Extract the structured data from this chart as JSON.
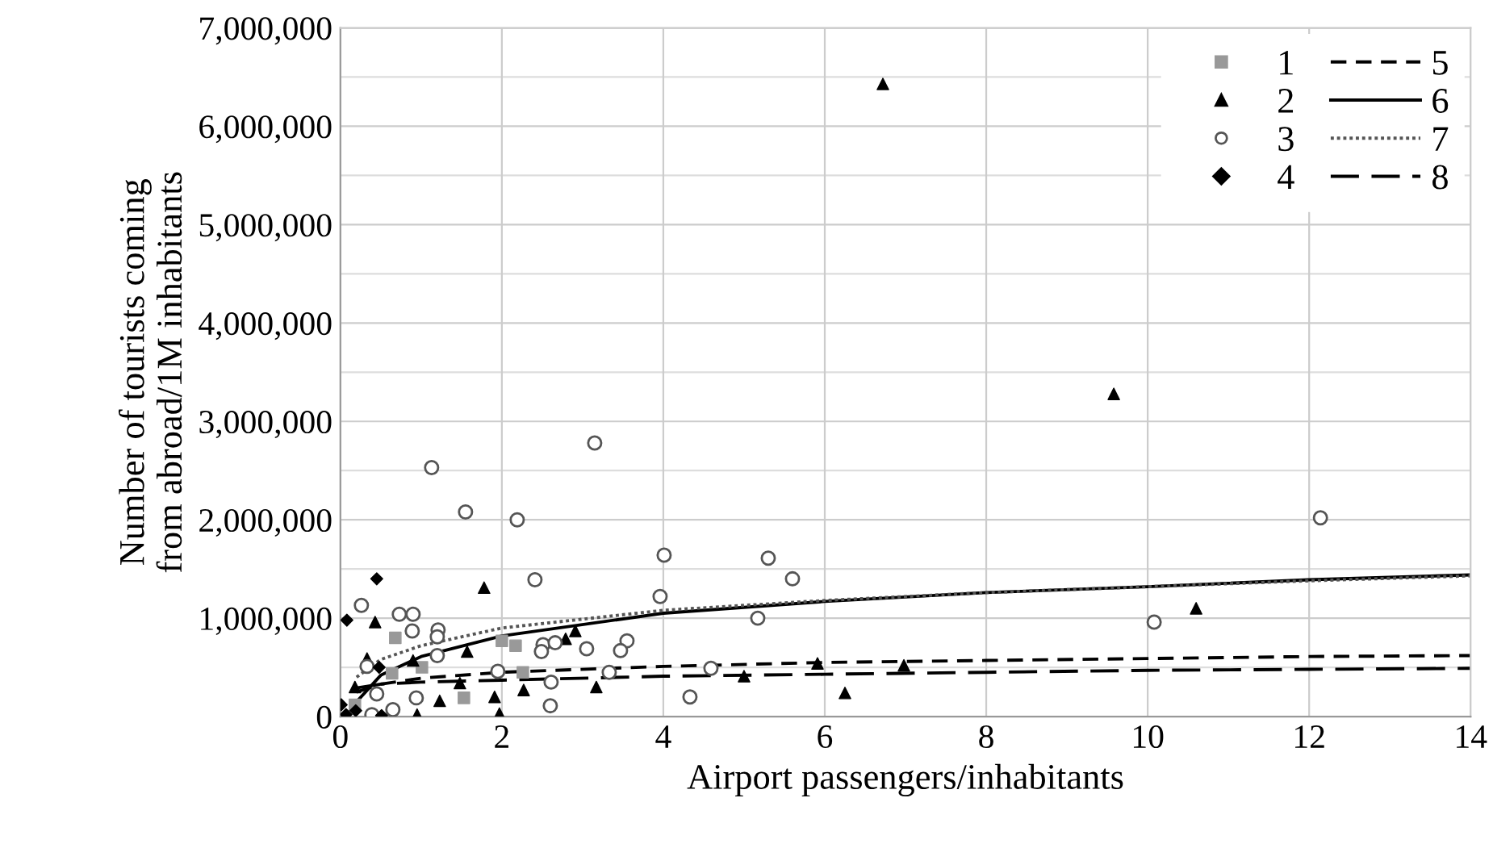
{
  "chart_data": {
    "type": "scatter",
    "xlabel": "Airport passengers/inhabitants",
    "ylabel": "Number of tourists coming\nfrom abroad/1M inhabitants",
    "xlim": [
      0,
      14
    ],
    "xticks": [
      0,
      2,
      4,
      6,
      8,
      10,
      12,
      14
    ],
    "ylim": [
      0,
      7000000
    ],
    "yticks": [
      {
        "value": 0,
        "label": "0"
      },
      {
        "value": 1000000,
        "label": "1,000,000"
      },
      {
        "value": 2000000,
        "label": "2,000,000"
      },
      {
        "value": 3000000,
        "label": "3,000,000"
      },
      {
        "value": 4000000,
        "label": "4,000,000"
      },
      {
        "value": 5000000,
        "label": "5,000,000"
      },
      {
        "value": 6000000,
        "label": "6,000,000"
      },
      {
        "value": 7000000,
        "label": "7,000,000"
      }
    ],
    "grid": true,
    "legend": "top right",
    "series": [
      {
        "name": "1",
        "marker": "square",
        "color": "#999999",
        "x": [
          0.68,
          1.01,
          2.0,
          2.17,
          1.53,
          2.26,
          0.64,
          0.18
        ],
        "values": [
          800000,
          500000,
          770000,
          720000,
          190000,
          450000,
          440000,
          120000
        ]
      },
      {
        "name": "2",
        "marker": "triangle",
        "color": "#000000",
        "x": [
          6.72,
          9.58,
          10.6,
          5.91,
          6.98,
          6.25,
          5.0,
          1.78,
          0.43,
          2.91,
          2.79,
          1.57,
          0.9,
          0.33,
          1.23,
          1.91,
          1.97,
          2.27,
          3.17,
          1.48,
          0.18,
          0.95
        ],
        "values": [
          6430000,
          3280000,
          1100000,
          540000,
          520000,
          240000,
          410000,
          1310000,
          960000,
          870000,
          790000,
          660000,
          570000,
          590000,
          160000,
          200000,
          30000,
          270000,
          300000,
          340000,
          300000,
          20000
        ]
      },
      {
        "name": "3",
        "marker": "circle",
        "color": "#555555",
        "x": [
          10.08,
          12.14,
          5.3,
          5.6,
          5.17,
          4.59,
          4.33,
          1.13,
          3.15,
          1.55,
          2.19,
          4.01,
          3.96,
          2.41,
          0.26,
          0.73,
          0.9,
          0.89,
          1.21,
          1.2,
          2.51,
          2.49,
          2.66,
          3.05,
          3.55,
          3.47,
          0.33,
          1.2,
          1.95,
          2.61,
          2.6,
          0.94,
          3.33,
          0.45,
          0.65,
          0.39
        ],
        "values": [
          960000,
          2020000,
          1610000,
          1400000,
          1000000,
          490000,
          200000,
          2530000,
          2780000,
          2080000,
          2000000,
          1640000,
          1220000,
          1390000,
          1130000,
          1040000,
          1040000,
          870000,
          880000,
          810000,
          730000,
          660000,
          750000,
          690000,
          770000,
          670000,
          510000,
          620000,
          460000,
          350000,
          110000,
          190000,
          450000,
          230000,
          70000,
          20000
        ]
      },
      {
        "name": "4",
        "marker": "diamond",
        "color": "#000000",
        "x": [
          0.45,
          0.08,
          0.48,
          0.07,
          0.19,
          0.01,
          0.51
        ],
        "values": [
          1400000,
          980000,
          500000,
          20000,
          60000,
          120000,
          10000
        ]
      },
      {
        "name": "5",
        "type": "line",
        "line_style": "dashed",
        "color": "#000000",
        "x": [
          0.2,
          0.5,
          1,
          2,
          4,
          6,
          8,
          10,
          12,
          14
        ],
        "values": [
          250000,
          330000,
          390000,
          450000,
          510000,
          550000,
          570000,
          590000,
          610000,
          620000
        ]
      },
      {
        "name": "6",
        "type": "line",
        "line_style": "solid",
        "color": "#000000",
        "x": [
          0.2,
          0.5,
          1,
          2,
          4,
          6,
          8,
          10,
          12,
          14
        ],
        "values": [
          150000,
          420000,
          610000,
          820000,
          1050000,
          1170000,
          1260000,
          1320000,
          1390000,
          1440000
        ]
      },
      {
        "name": "7",
        "type": "line",
        "line_style": "dotted",
        "color": "#555555",
        "x": [
          0.2,
          0.5,
          1,
          2,
          4,
          6,
          8,
          10,
          12,
          14
        ],
        "values": [
          400000,
          580000,
          720000,
          900000,
          1080000,
          1180000,
          1260000,
          1320000,
          1380000,
          1430000
        ]
      },
      {
        "name": "8",
        "type": "line",
        "line_style": "dashed",
        "color": "#000000",
        "x": [
          0.2,
          0.5,
          1,
          2,
          4,
          6,
          8,
          10,
          12,
          14
        ],
        "values": [
          290000,
          330000,
          350000,
          370000,
          410000,
          430000,
          450000,
          470000,
          480000,
          490000
        ]
      }
    ]
  }
}
